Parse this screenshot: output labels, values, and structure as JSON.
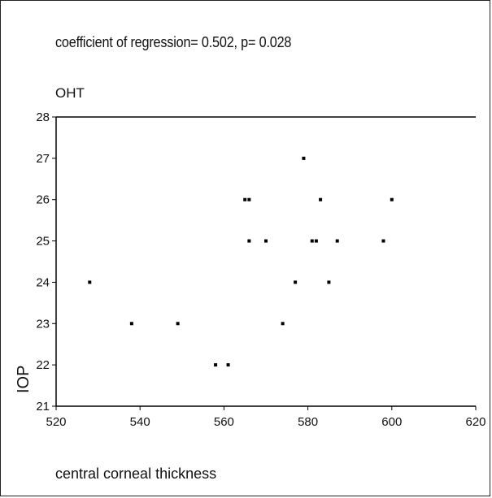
{
  "chart_data": {
    "type": "scatter",
    "subtitle": "coefficient of regression= 0.502, p= 0.028",
    "title": "OHT",
    "xlabel": "central corneal thickness",
    "ylabel": "IOP",
    "xlim": [
      520,
      620
    ],
    "ylim": [
      21,
      28
    ],
    "xticks": [
      "520",
      "540",
      "560",
      "580",
      "600",
      "620"
    ],
    "yticks": [
      "21",
      "22",
      "23",
      "24",
      "25",
      "26",
      "27",
      "28"
    ],
    "grid": false,
    "legend": "none",
    "points": [
      {
        "x": 528,
        "y": 24
      },
      {
        "x": 538,
        "y": 23
      },
      {
        "x": 549,
        "y": 23
      },
      {
        "x": 558,
        "y": 22
      },
      {
        "x": 561,
        "y": 22
      },
      {
        "x": 565,
        "y": 26
      },
      {
        "x": 566,
        "y": 26
      },
      {
        "x": 566,
        "y": 25
      },
      {
        "x": 570,
        "y": 25
      },
      {
        "x": 574,
        "y": 23
      },
      {
        "x": 577,
        "y": 24
      },
      {
        "x": 579,
        "y": 27
      },
      {
        "x": 581,
        "y": 25
      },
      {
        "x": 582,
        "y": 25
      },
      {
        "x": 583,
        "y": 26
      },
      {
        "x": 585,
        "y": 24
      },
      {
        "x": 587,
        "y": 25
      },
      {
        "x": 598,
        "y": 25
      },
      {
        "x": 600,
        "y": 26
      }
    ],
    "colors": {
      "marker": "#000000",
      "axis": "#000000"
    }
  }
}
